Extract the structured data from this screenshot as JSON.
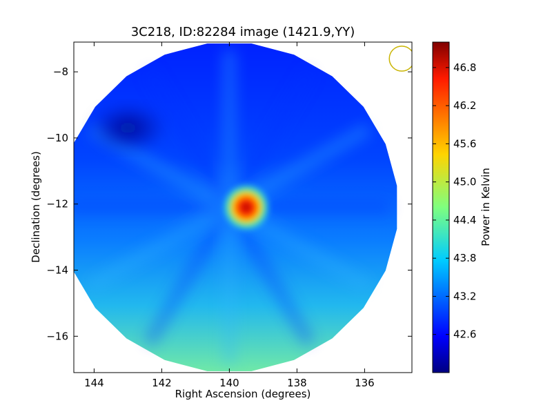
{
  "chart_data": {
    "type": "heatmap",
    "title": "3C218, ID:82284 image (1421.9,YY)",
    "xlabel": "Right Ascension (degrees)",
    "ylabel": "Declination (degrees)",
    "xlim": [
      144.6,
      134.6
    ],
    "ylim": [
      -17.1,
      -7.1
    ],
    "x_ticks": [
      144,
      142,
      140,
      138,
      136
    ],
    "y_ticks": [
      -8,
      -10,
      -12,
      -14,
      -16
    ],
    "grid": false,
    "colormap": "jet",
    "colorbar": {
      "label": "Power in Kelvin",
      "range": [
        42.0,
        47.2
      ],
      "ticks": [
        "42.6",
        "43.2",
        "43.8",
        "44.4",
        "45.0",
        "45.6",
        "46.2",
        "46.8"
      ]
    },
    "field_of_view": {
      "shape": "circular",
      "center_ra": 140.0,
      "center_dec": -12.1,
      "radius_deg": 5.0
    },
    "background_level": 42.9,
    "gradient": {
      "description": "emission increases toward south (lower declination)",
      "north_level": 42.5,
      "south_level": 44.4
    },
    "sources": [
      {
        "name": "3C218",
        "ra": 139.5,
        "dec": -12.1,
        "peak": 47.0
      },
      {
        "name": "cold-region",
        "ra": 143.0,
        "dec": -9.7,
        "peak": 42.1
      }
    ],
    "beam_marker": {
      "ra": 134.9,
      "dec": -7.6,
      "radius_deg": 0.37,
      "color": "#c9b400"
    }
  }
}
